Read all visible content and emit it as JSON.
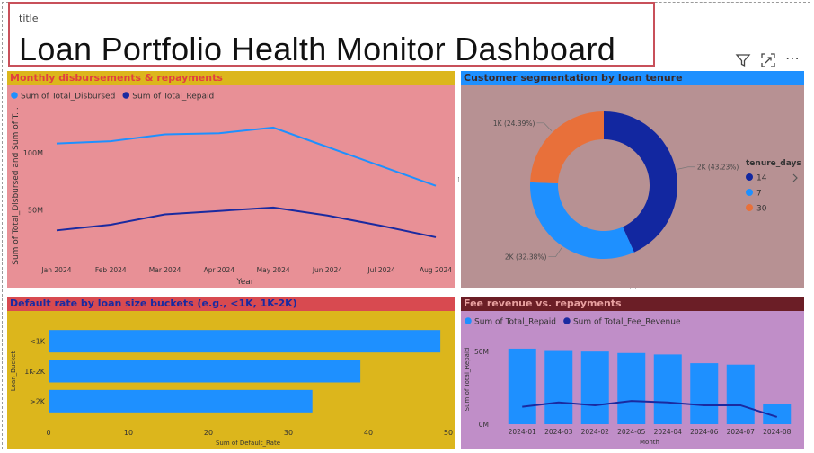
{
  "header": {
    "title_label": "title",
    "title": "Loan Portfolio Health Monitor Dashboard"
  },
  "toolbar": {
    "icons": [
      "filter-icon",
      "focus-mode-icon",
      "more-options-icon"
    ],
    "more_glyph": "⋯"
  },
  "colors": {
    "light_blue": "#1e90ff",
    "dark_blue": "#1a2aa0",
    "navy": "#1227a0",
    "orange": "#e8703a",
    "p1_bg": "#e89096",
    "p1_header": "#dcb61c",
    "p1_title": "#e23f3f",
    "p2_bg": "#b79193",
    "p2_header": "#1e90ff",
    "p2_title": "#3a2a2a",
    "p3_bg": "#dcb61c",
    "p3_header": "#d84a50",
    "p3_title": "#1a2aa0",
    "p4_bg": "#c08ec8",
    "p4_header": "#6b1e26",
    "p4_title": "#e8a0a0"
  },
  "panels": {
    "p1": {
      "title": "Monthly disbursements & repayments"
    },
    "p2": {
      "title": "Customer segmentation by loan tenure"
    },
    "p3": {
      "title": "Default rate by loan size buckets (e.g., <1K, 1K-2K)"
    },
    "p4": {
      "title": "Fee revenue vs. repayments"
    }
  },
  "chart_data": [
    {
      "type": "line",
      "title": "Monthly disbursements & repayments",
      "xlabel": "Year",
      "ylabel": "Sum of Total_Disbursed and Sum of T...",
      "categories": [
        "Jan 2024",
        "Feb 2024",
        "Mar 2024",
        "Apr 2024",
        "May 2024",
        "Jun 2024",
        "Jul 2024",
        "Aug 2024"
      ],
      "series": [
        {
          "name": "Sum of Total_Disbursed",
          "values": [
            108,
            110,
            116,
            117,
            122,
            105,
            88,
            71
          ]
        },
        {
          "name": "Sum of Total_Repaid",
          "values": [
            32,
            37,
            46,
            49,
            52,
            45,
            36,
            26
          ]
        }
      ],
      "yticks": [
        {
          "label": "50M",
          "value": 50
        },
        {
          "label": "100M",
          "value": 100
        }
      ],
      "ylim": [
        0,
        140
      ],
      "legend": "top-left",
      "grid": false
    },
    {
      "type": "pie",
      "title": "Customer segmentation by loan tenure",
      "donut": true,
      "legend_title": "tenure_days",
      "legend": "right",
      "slices": [
        {
          "label": "14",
          "value": 43.23,
          "data_label": "2K (43.23%)"
        },
        {
          "label": "7",
          "value": 32.38,
          "data_label": "2K (32.38%)"
        },
        {
          "label": "30",
          "value": 24.39,
          "data_label": "1K (24.39%)"
        }
      ]
    },
    {
      "type": "bar",
      "orientation": "horizontal",
      "title": "Default rate by loan size buckets (e.g., <1K, 1K-2K)",
      "xlabel": "Sum of Default_Rate",
      "ylabel": "Loan_Bucket",
      "categories": [
        "<1K",
        "1K-2K",
        ">2K"
      ],
      "values": [
        49,
        39,
        33
      ],
      "xlim": [
        0,
        50
      ],
      "xticks": [
        0,
        10,
        20,
        30,
        40,
        50
      ],
      "grid": false
    },
    {
      "type": "bar",
      "combo": true,
      "title": "Fee revenue vs. repayments",
      "xlabel": "Month",
      "ylabel": "Sum of Total_Repaid",
      "categories": [
        "2024-01",
        "2024-03",
        "2024-02",
        "2024-05",
        "2024-04",
        "2024-06",
        "2024-07",
        "2024-08"
      ],
      "series": [
        {
          "name": "Sum of Total_Repaid",
          "kind": "bar",
          "values": [
            52,
            51,
            50,
            49,
            48,
            42,
            41,
            14
          ]
        },
        {
          "name": "Sum of Total_Fee_Revenue",
          "kind": "line",
          "values": [
            12,
            15,
            13,
            16,
            15,
            13,
            13,
            5
          ]
        }
      ],
      "yticks": [
        {
          "label": "0M",
          "value": 0
        },
        {
          "label": "50M",
          "value": 50
        }
      ],
      "ylim": [
        0,
        60
      ],
      "legend": "top-left",
      "grid": false
    }
  ]
}
